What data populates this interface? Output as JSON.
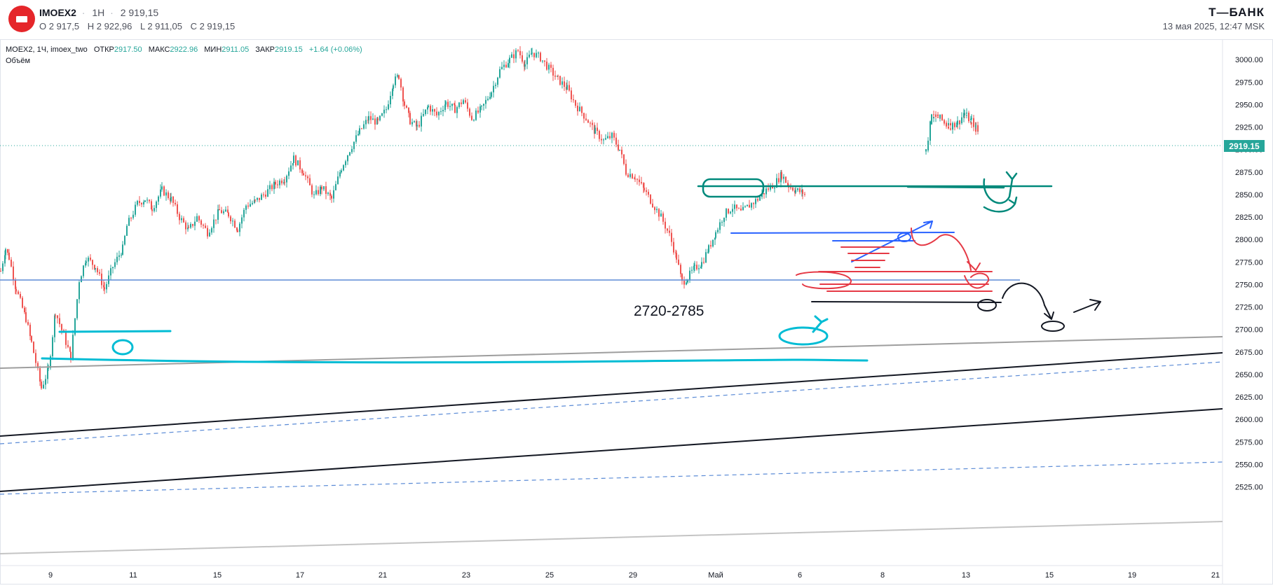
{
  "header": {
    "ticker": "IMOEX2",
    "timeframe": "1H",
    "last_price": "2 919,15",
    "ohlc": [
      "O 2 917,5",
      "H 2 922,96",
      "L 2 911,05",
      "C 2 919,15"
    ],
    "brand": "Т—БАНК",
    "datetime": "13 мая 2025, 12:47 MSK"
  },
  "legend": {
    "symbol": "MOEX2, 1Ч, imoex_two",
    "open_label": "ОТКР",
    "open": "2917.50",
    "high_label": "МАКС",
    "high": "2922.96",
    "low_label": "МИН",
    "low": "2911.05",
    "close_label": "ЗАКР",
    "close": "2919.15",
    "change": "+1.64 (+0.06%)",
    "volume_label": "Объём"
  },
  "colors": {
    "up": "#26a69a",
    "down": "#ef5350",
    "cyan": "#00bcd4",
    "teal": "#00897b",
    "red": "#e53945",
    "blue": "#2962ff",
    "price_tag": "#26a69a"
  },
  "chart_data": {
    "type": "candlestick",
    "title": "",
    "annotation": "2720-2785",
    "current_price": "2919.15",
    "ylim": [
      2515,
      3015
    ],
    "y_ticks": [
      "3000.00",
      "2975.00",
      "2950.00",
      "2925.00",
      "2900.00",
      "2875.00",
      "2850.00",
      "2825.00",
      "2800.00",
      "2775.00",
      "2750.00",
      "2725.00",
      "2700.00",
      "2675.00",
      "2650.00",
      "2625.00",
      "2600.00",
      "2575.00",
      "2550.00",
      "2525.00"
    ],
    "x_ticks": [
      "9",
      "11",
      "15",
      "17",
      "21",
      "23",
      "25",
      "29",
      "Май",
      "6",
      "8",
      "13",
      "15",
      "19",
      "21"
    ],
    "price_path": [
      [
        0,
        2765
      ],
      [
        7,
        2790
      ],
      [
        12,
        2780
      ],
      [
        22,
        2745
      ],
      [
        36,
        2712
      ],
      [
        44,
        2685
      ],
      [
        58,
        2635
      ],
      [
        68,
        2655
      ],
      [
        78,
        2720
      ],
      [
        100,
        2670
      ],
      [
        112,
        2755
      ],
      [
        122,
        2780
      ],
      [
        135,
        2770
      ],
      [
        148,
        2745
      ],
      [
        160,
        2770
      ],
      [
        174,
        2790
      ],
      [
        180,
        2815
      ],
      [
        195,
        2840
      ],
      [
        206,
        2845
      ],
      [
        216,
        2835
      ],
      [
        230,
        2855
      ],
      [
        243,
        2845
      ],
      [
        255,
        2825
      ],
      [
        268,
        2810
      ],
      [
        280,
        2825
      ],
      [
        295,
        2808
      ],
      [
        312,
        2832
      ],
      [
        325,
        2828
      ],
      [
        338,
        2812
      ],
      [
        350,
        2838
      ],
      [
        363,
        2842
      ],
      [
        378,
        2852
      ],
      [
        392,
        2862
      ],
      [
        405,
        2868
      ],
      [
        418,
        2890
      ],
      [
        432,
        2875
      ],
      [
        447,
        2848
      ],
      [
        458,
        2858
      ],
      [
        472,
        2845
      ],
      [
        486,
        2880
      ],
      [
        498,
        2900
      ],
      [
        512,
        2920
      ],
      [
        525,
        2935
      ],
      [
        538,
        2930
      ],
      [
        550,
        2945
      ],
      [
        560,
        2975
      ],
      [
        568,
        2982
      ],
      [
        576,
        2950
      ],
      [
        584,
        2932
      ],
      [
        594,
        2925
      ],
      [
        610,
        2948
      ],
      [
        622,
        2938
      ],
      [
        635,
        2952
      ],
      [
        648,
        2945
      ],
      [
        660,
        2955
      ],
      [
        672,
        2935
      ],
      [
        686,
        2945
      ],
      [
        700,
        2965
      ],
      [
        712,
        2988
      ],
      [
        726,
        3000
      ],
      [
        738,
        3010
      ],
      [
        748,
        2995
      ],
      [
        758,
        3008
      ],
      [
        770,
        3002
      ],
      [
        782,
        2990
      ],
      [
        795,
        2978
      ],
      [
        808,
        2968
      ],
      [
        820,
        2950
      ],
      [
        835,
        2935
      ],
      [
        848,
        2920
      ],
      [
        860,
        2910
      ],
      [
        872,
        2915
      ],
      [
        883,
        2900
      ],
      [
        892,
        2875
      ],
      [
        905,
        2870
      ],
      [
        918,
        2855
      ],
      [
        930,
        2840
      ],
      [
        942,
        2825
      ],
      [
        954,
        2805
      ],
      [
        964,
        2780
      ],
      [
        972,
        2752
      ],
      [
        980,
        2758
      ],
      [
        990,
        2768
      ],
      [
        1000,
        2774
      ],
      [
        1010,
        2790
      ],
      [
        1020,
        2808
      ],
      [
        1032,
        2828
      ],
      [
        1044,
        2836
      ],
      [
        1056,
        2830
      ],
      [
        1068,
        2838
      ],
      [
        1080,
        2845
      ],
      [
        1092,
        2855
      ],
      [
        1104,
        2862
      ],
      [
        1114,
        2872
      ],
      [
        1124,
        2860
      ],
      [
        1134,
        2855
      ],
      [
        1144,
        2852
      ],
      [
        1150,
        2848
      ],
      [
        1320,
        2898
      ],
      [
        1328,
        2938
      ],
      [
        1340,
        2935
      ],
      [
        1352,
        2925
      ],
      [
        1365,
        2930
      ],
      [
        1375,
        2940
      ],
      [
        1385,
        2932
      ],
      [
        1395,
        2919
      ]
    ]
  }
}
